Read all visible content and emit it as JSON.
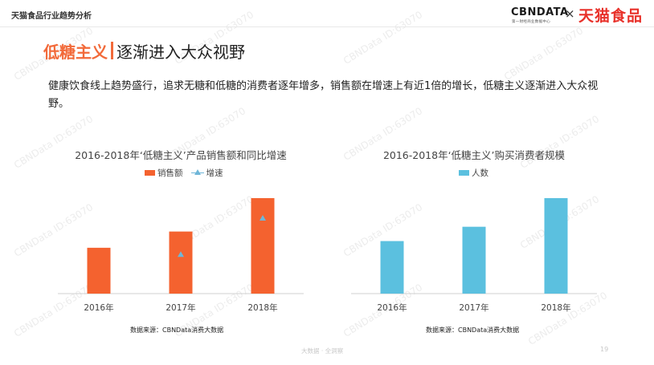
{
  "header": {
    "title": "天猫食品行业趋势分析",
    "logo_cbn": "CBNDATA",
    "logo_cbn_sub": "第一财经商业数据中心",
    "logo_x": "×",
    "logo_tmall": "天猫食品"
  },
  "slide": {
    "title_highlight": "低糖主义",
    "title_main": "逐渐进入大众视野",
    "description": "健康饮食线上趋势盛行，追求无糖和低糖的消费者逐年增多，销售额在增速上有近1倍的增长，低糖主义逐渐进入大众视野。",
    "footer_center": "大数据 · 全洞察",
    "page_number": "19",
    "watermark": "CBNData ID:63070"
  },
  "colors": {
    "accent_orange": "#f26a3a",
    "bar_orange": "#f4622f",
    "bar_blue": "#5bc0df",
    "growth_marker": "#6fb6d8"
  },
  "chart_data": [
    {
      "type": "bar",
      "title": "2016-2018年‘低糖主义’产品销售额和同比增速",
      "categories": [
        "2016年",
        "2017年",
        "2018年"
      ],
      "series": [
        {
          "name": "销售额",
          "values": [
            0.48,
            0.65,
            1.0
          ]
        },
        {
          "name": "增速",
          "type": "line-markers",
          "values": [
            null,
            0.41,
            0.79
          ]
        }
      ],
      "ylim": [
        0,
        1.05
      ],
      "legend": "top-center",
      "grid": false,
      "source": "数据来源：CBNData消费大数据"
    },
    {
      "type": "bar",
      "title": "2016-2018年‘低糖主义’购买消费者规模",
      "categories": [
        "2016年",
        "2017年",
        "2018年"
      ],
      "series": [
        {
          "name": "人数",
          "values": [
            0.55,
            0.7,
            1.0
          ]
        }
      ],
      "ylim": [
        0,
        1.05
      ],
      "legend": "top-center",
      "grid": false,
      "source": "数据来源：CBNData消费大数据"
    }
  ]
}
